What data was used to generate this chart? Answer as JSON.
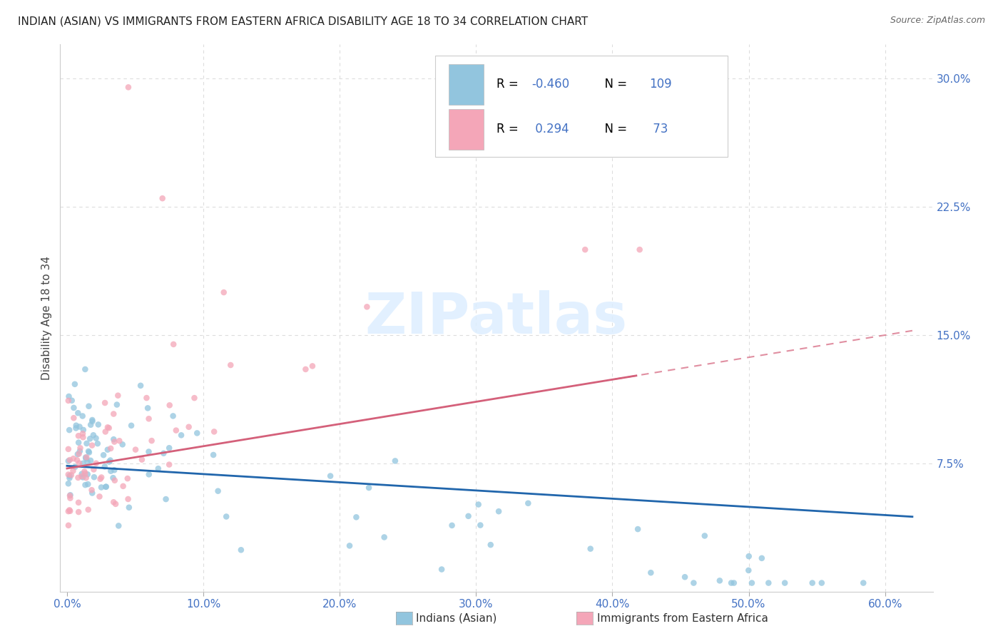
{
  "title": "INDIAN (ASIAN) VS IMMIGRANTS FROM EASTERN AFRICA DISABILITY AGE 18 TO 34 CORRELATION CHART",
  "source": "Source: ZipAtlas.com",
  "ylabel": "Disability Age 18 to 34",
  "ylim": [
    0.0,
    0.32
  ],
  "xlim": [
    -0.005,
    0.635
  ],
  "blue_R": -0.46,
  "blue_N": 109,
  "pink_R": 0.294,
  "pink_N": 73,
  "blue_color": "#92c5de",
  "pink_color": "#f4a6b8",
  "blue_line_color": "#2166ac",
  "pink_line_color": "#d4607a",
  "watermark_color": "#ddeeff",
  "legend_label_blue": "Indians (Asian)",
  "legend_label_pink": "Immigrants from Eastern Africa",
  "stat_color": "#4472c4",
  "title_color": "#222222",
  "source_color": "#666666",
  "ylabel_color": "#444444",
  "tick_color": "#4472c4",
  "grid_color": "#dddddd",
  "legend_border_color": "#cccccc"
}
